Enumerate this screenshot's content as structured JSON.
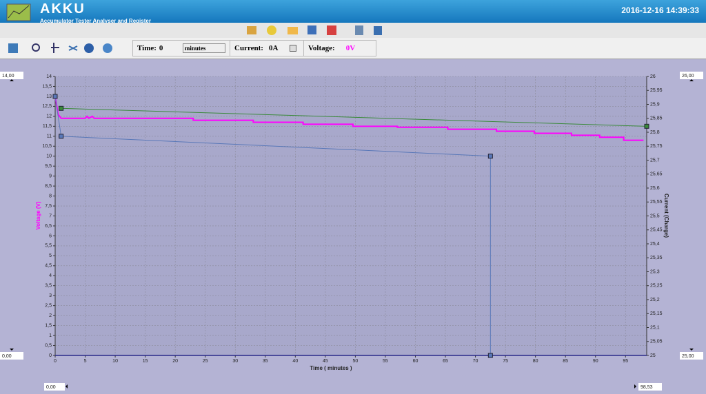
{
  "header": {
    "title": "AKKU",
    "subtitle": "Accumulator Tester Analyser and Register",
    "datetime": "2016-12-16 14:39:33"
  },
  "toolbar": {
    "time_label": "Time:",
    "time_value": "0",
    "time_unit": "minutes",
    "current_label": "Current:",
    "current_value": "0A",
    "voltage_label": "Voltage:",
    "voltage_value": "0V"
  },
  "range_boxes": {
    "y_max": "14,00",
    "y_min": "0,00",
    "y2_max": "26,00",
    "y2_min": "25,00",
    "x_min": "0,00",
    "x_max": "98,53"
  },
  "chart_data": {
    "type": "line",
    "xlabel": "Time ( minutes )",
    "ylabel": "Voltage (V)",
    "y2label": "Current (Charge)",
    "grid": true,
    "xlim": [
      0,
      98.53
    ],
    "ylim": [
      0,
      14
    ],
    "y2lim": [
      25,
      26
    ],
    "xticks": [
      0,
      5,
      10,
      15,
      20,
      25,
      30,
      35,
      40,
      45,
      50,
      55,
      60,
      65,
      70,
      75,
      80,
      85,
      90,
      95
    ],
    "yticks": [
      0,
      {
        "value": 0.5,
        "label": "0,5"
      },
      1,
      {
        "value": 1.5,
        "label": "1,5"
      },
      2,
      {
        "value": 2.5,
        "label": "2,5"
      },
      3,
      {
        "value": 3.5,
        "label": "3,5"
      },
      4,
      {
        "value": 4.5,
        "label": "4,5"
      },
      5,
      {
        "value": 5.5,
        "label": "5,5"
      },
      6,
      {
        "value": 6.5,
        "label": "6,5"
      },
      7,
      {
        "value": 7.5,
        "label": "7,5"
      },
      8,
      {
        "value": 8.5,
        "label": "8,5"
      },
      9,
      {
        "value": 9.5,
        "label": "9,5"
      },
      10,
      {
        "value": 10.5,
        "label": "10,5"
      },
      11,
      {
        "value": 11.5,
        "label": "11,5"
      },
      12,
      {
        "value": 12.5,
        "label": "12,5"
      },
      13,
      {
        "value": 13.5,
        "label": "13,5"
      },
      14
    ],
    "y2ticks": [
      25,
      {
        "value": 25.05,
        "label": "25,05"
      },
      {
        "value": 25.1,
        "label": "25,1"
      },
      {
        "value": 25.15,
        "label": "25,15"
      },
      {
        "value": 25.2,
        "label": "25,2"
      },
      {
        "value": 25.25,
        "label": "25,25"
      },
      {
        "value": 25.3,
        "label": "25,3"
      },
      {
        "value": 25.35,
        "label": "25,35"
      },
      {
        "value": 25.4,
        "label": "25,4"
      },
      {
        "value": 25.45,
        "label": "25,45"
      },
      {
        "value": 25.5,
        "label": "25,5"
      },
      {
        "value": 25.55,
        "label": "25,55"
      },
      {
        "value": 25.6,
        "label": "25,6"
      },
      {
        "value": 25.65,
        "label": "25,65"
      },
      {
        "value": 25.7,
        "label": "25,7"
      },
      {
        "value": 25.75,
        "label": "25,75"
      },
      {
        "value": 25.8,
        "label": "25,8"
      },
      {
        "value": 25.85,
        "label": "25,85"
      },
      {
        "value": 25.9,
        "label": "25,9"
      },
      {
        "value": 25.95,
        "label": "25,95"
      },
      26
    ],
    "series": [
      {
        "color": "#ff00ff",
        "marker": "none",
        "x": [
          0,
          0.5,
          1,
          5,
          5.3,
          5.6,
          6.2,
          6.5,
          23,
          23,
          33,
          33,
          41.3,
          41.3,
          49.6,
          49.6,
          57,
          57,
          65.4,
          65.4,
          73.5,
          73.5,
          79.8,
          79.8,
          86,
          86,
          90.7,
          90.7,
          94.7,
          94.7,
          98
        ],
        "values": [
          13,
          12.1,
          11.9,
          11.9,
          12,
          11.9,
          12,
          11.9,
          11.9,
          11.8,
          11.8,
          11.7,
          11.7,
          11.6,
          11.6,
          11.5,
          11.5,
          11.45,
          11.45,
          11.35,
          11.35,
          11.25,
          11.25,
          11.15,
          11.15,
          11.05,
          11.05,
          10.95,
          10.95,
          10.8,
          10.8
        ]
      },
      {
        "color": "#3a8a3a",
        "marker": "square",
        "x": [
          1,
          98.53
        ],
        "values": [
          12.4,
          11.5
        ]
      },
      {
        "color": "#5a78b8",
        "marker": "square",
        "x": [
          0,
          1,
          72.5,
          72.5
        ],
        "values": [
          13,
          11,
          10,
          0
        ]
      }
    ]
  }
}
